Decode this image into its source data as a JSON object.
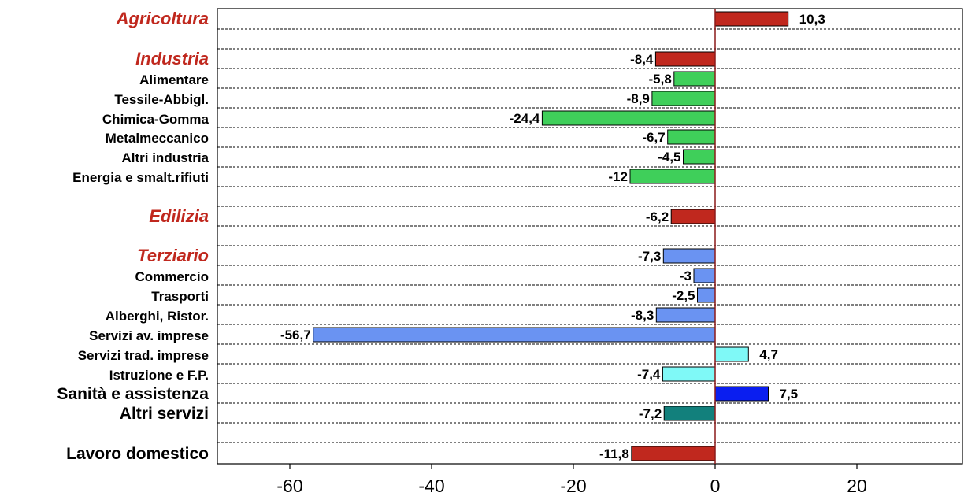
{
  "chart_data": {
    "type": "bar",
    "orientation": "horizontal",
    "xlim": [
      -70,
      35
    ],
    "xticks": [
      -60,
      -40,
      -20,
      0,
      20
    ],
    "grid": "dashed horizontal",
    "categories": [
      {
        "label": "Agricoltura",
        "value": 10.3,
        "value_label": "10,3",
        "style": "main",
        "color": "#c0281e"
      },
      {
        "label": "Industria",
        "value": -8.4,
        "value_label": "-8,4",
        "style": "main",
        "color": "#c0281e"
      },
      {
        "label": "Alimentare",
        "value": -5.8,
        "value_label": "-5,8",
        "style": "sub",
        "color": "#3fcf5a"
      },
      {
        "label": "Tessile-Abbigl.",
        "value": -8.9,
        "value_label": "-8,9",
        "style": "sub",
        "color": "#3fcf5a"
      },
      {
        "label": "Chimica-Gomma",
        "value": -24.4,
        "value_label": "-24,4",
        "style": "sub",
        "color": "#3fcf5a"
      },
      {
        "label": "Metalmeccanico",
        "value": -6.7,
        "value_label": "-6,7",
        "style": "sub",
        "color": "#3fcf5a"
      },
      {
        "label": "Altri industria",
        "value": -4.5,
        "value_label": "-4,5",
        "style": "sub",
        "color": "#3fcf5a"
      },
      {
        "label": "Energia e smalt.rifiuti",
        "value": -12,
        "value_label": "-12",
        "style": "sub",
        "color": "#3fcf5a"
      },
      {
        "label": "Edilizia",
        "value": -6.2,
        "value_label": "-6,2",
        "style": "main",
        "color": "#c0281e"
      },
      {
        "label": "Terziario",
        "value": -7.3,
        "value_label": "-7,3",
        "style": "main",
        "color": "#6a93f2"
      },
      {
        "label": "Commercio",
        "value": -3,
        "value_label": "-3",
        "style": "sub",
        "color": "#6a93f2"
      },
      {
        "label": "Trasporti",
        "value": -2.5,
        "value_label": "-2,5",
        "style": "sub",
        "color": "#6a93f2"
      },
      {
        "label": "Alberghi, Ristor.",
        "value": -8.3,
        "value_label": "-8,3",
        "style": "sub",
        "color": "#6a93f2"
      },
      {
        "label": "Servizi av. imprese",
        "value": -56.7,
        "value_label": "-56,7",
        "style": "sub",
        "color": "#6a93f2"
      },
      {
        "label": "Servizi trad. imprese",
        "value": 4.7,
        "value_label": "4,7",
        "style": "sub",
        "color": "#7ff9f7"
      },
      {
        "label": "Istruzione e F.P.",
        "value": -7.4,
        "value_label": "-7,4",
        "style": "sub",
        "color": "#7ff9f7"
      },
      {
        "label": "Sanità e assistenza",
        "value": 7.5,
        "value_label": "7,5",
        "style": "big",
        "color": "#0a1ef0"
      },
      {
        "label": "Altri servizi",
        "value": -7.2,
        "value_label": "-7,2",
        "style": "big",
        "color": "#12807c"
      },
      {
        "label": "Lavoro domestico",
        "value": -11.8,
        "value_label": "-11,8",
        "style": "big",
        "color": "#c0281e"
      }
    ]
  }
}
